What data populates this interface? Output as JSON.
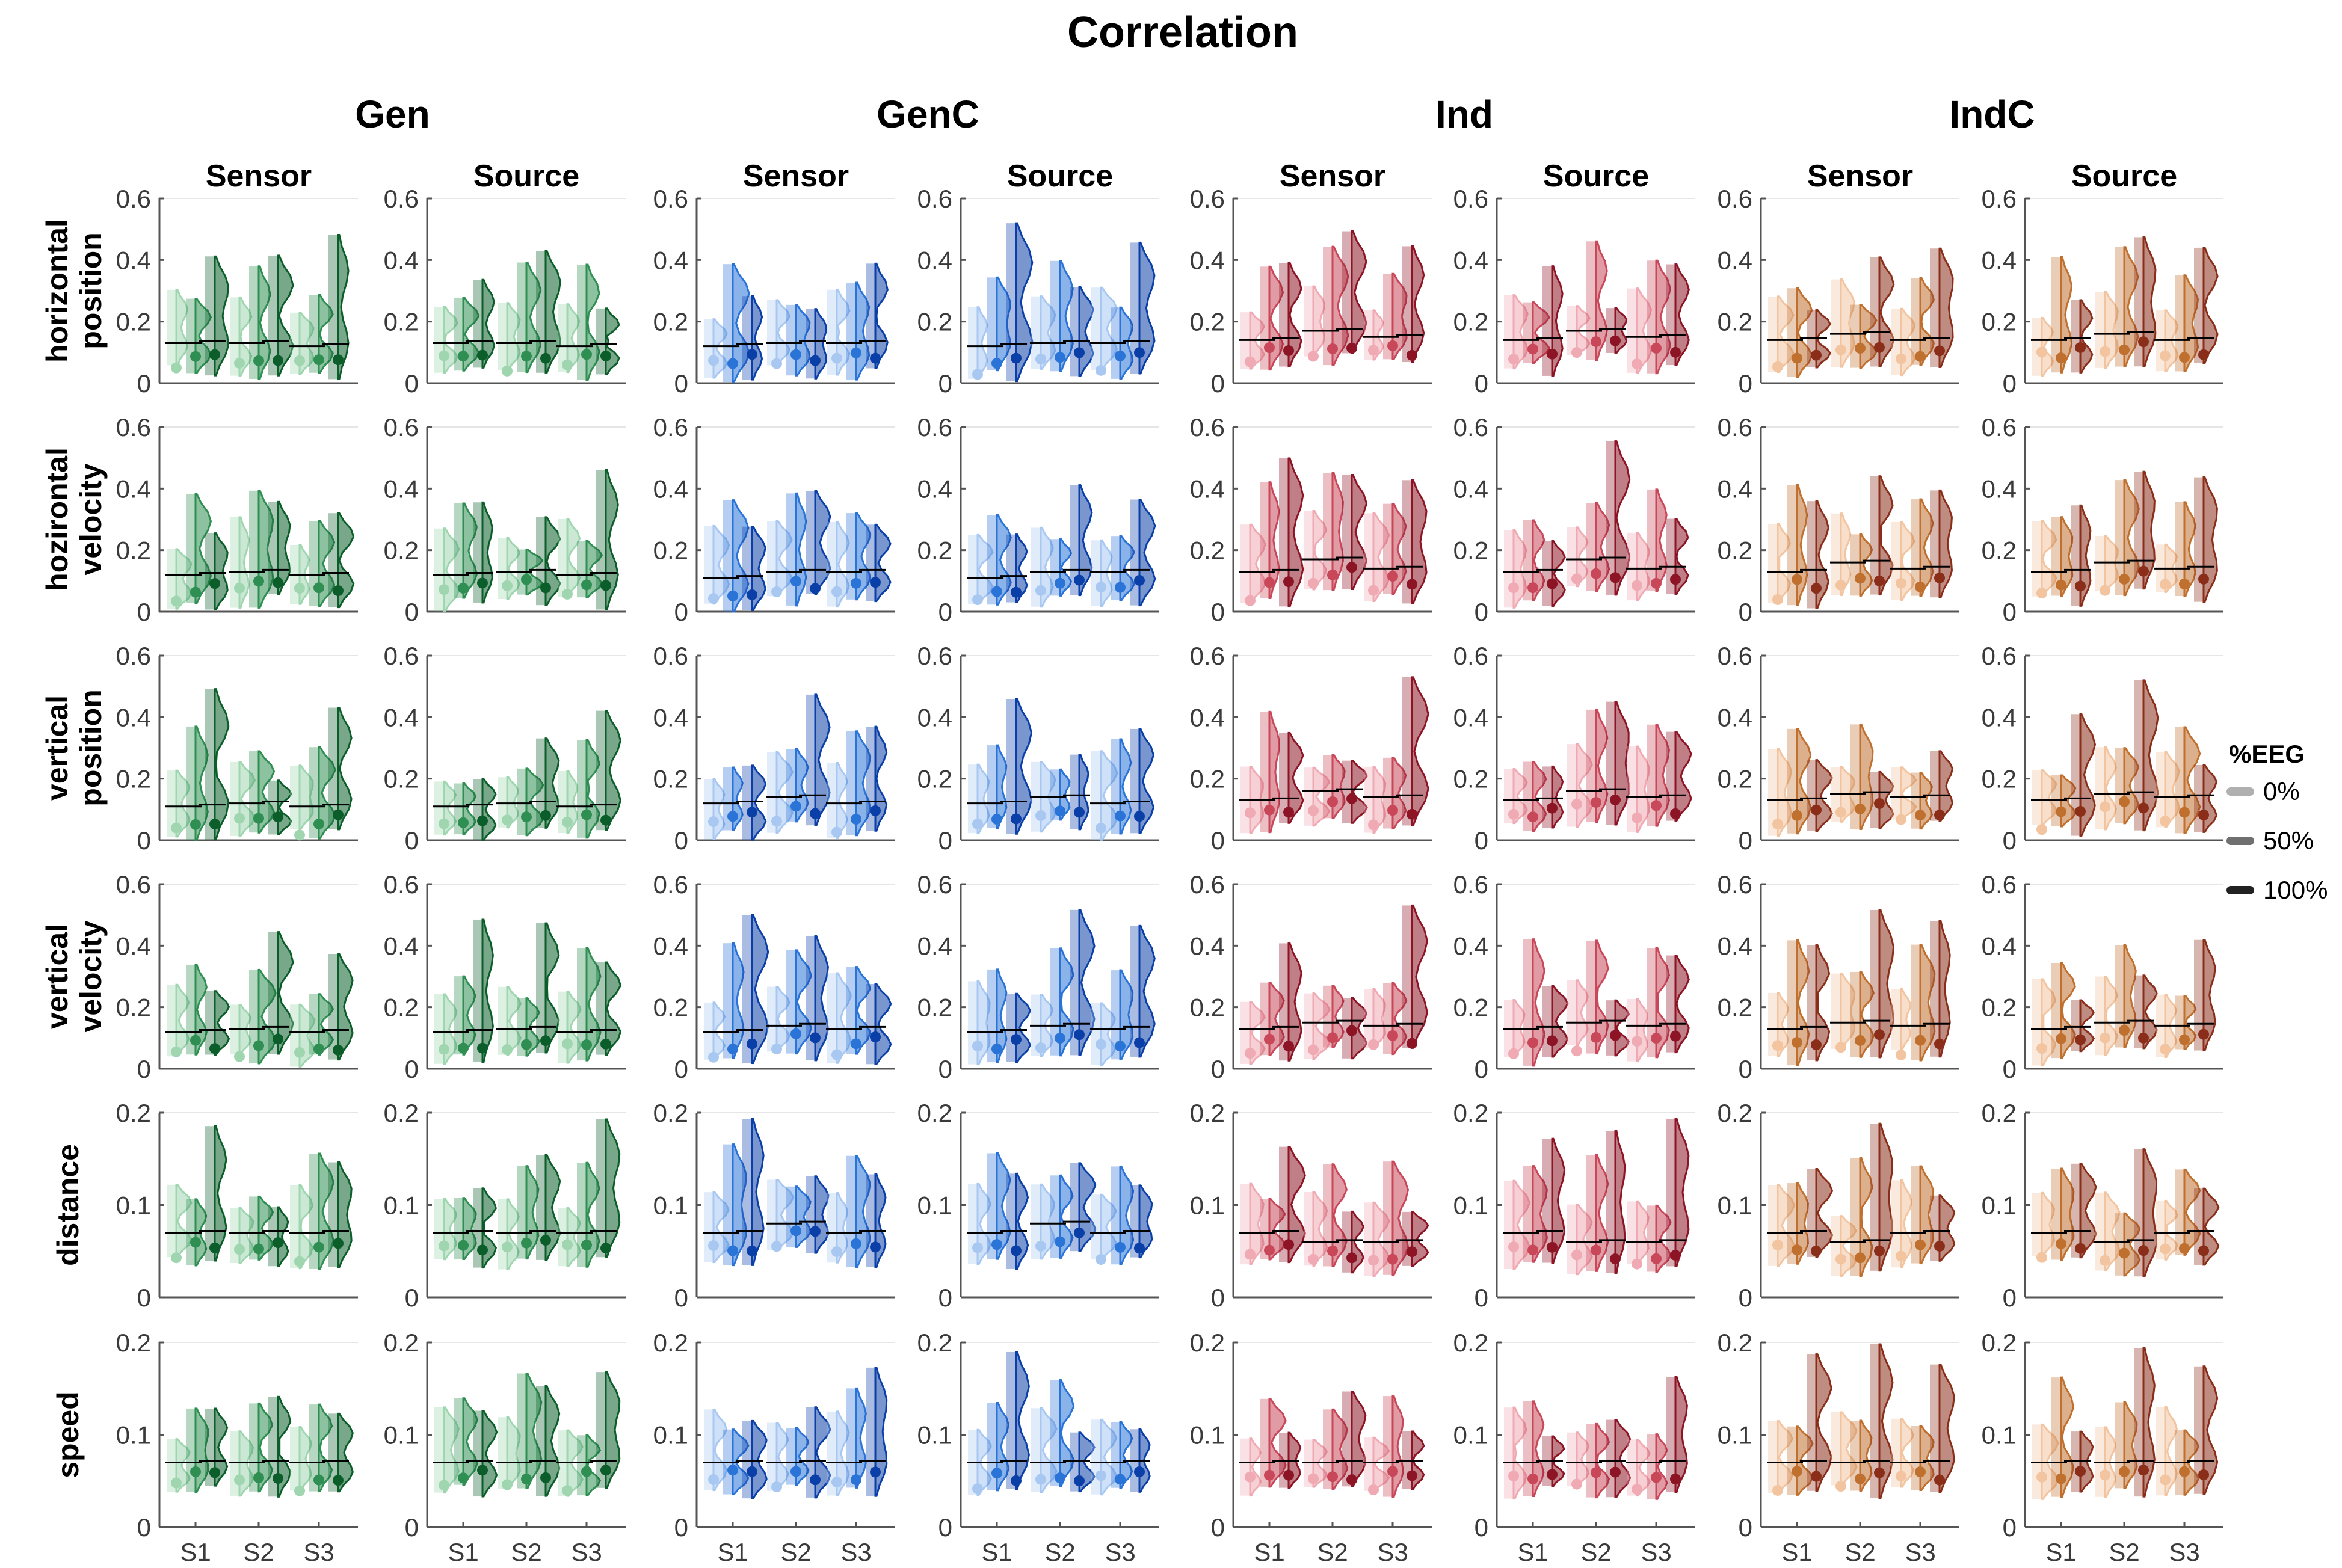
{
  "chart_data": {
    "type": "violin",
    "title": "Correlation",
    "groups": [
      {
        "name": "Gen",
        "color_dark": "#0b5e2a",
        "color_mid": "#2f8f52",
        "color_light": "#9fd6b0"
      },
      {
        "name": "GenC",
        "color_dark": "#0b3fa8",
        "color_mid": "#2a74d8",
        "color_light": "#a8c8f2"
      },
      {
        "name": "Ind",
        "color_dark": "#8c1424",
        "color_mid": "#c8485a",
        "color_light": "#f0aab4"
      },
      {
        "name": "IndC",
        "color_dark": "#8a2e1a",
        "color_mid": "#c0702e",
        "color_light": "#f2c4a0"
      }
    ],
    "spaces": [
      "Sensor",
      "Source"
    ],
    "subjects": [
      "S1",
      "S2",
      "S3"
    ],
    "rows": [
      {
        "label": [
          "horizontal",
          "position"
        ],
        "ylim": [
          0,
          0.6
        ],
        "yticks": [
          "0",
          "0.2",
          "0.4",
          "0.6"
        ],
        "medians": {
          "Gen": [
            0.13,
            0.13,
            0.12
          ],
          "GenC": [
            0.12,
            0.13,
            0.13
          ],
          "Ind": [
            0.14,
            0.17,
            0.15
          ],
          "IndC": [
            0.14,
            0.16,
            0.14
          ]
        }
      },
      {
        "label": [
          "hozirontal",
          "velocity"
        ],
        "ylim": [
          0,
          0.6
        ],
        "yticks": [
          "0",
          "0.2",
          "0.4",
          "0.6"
        ],
        "medians": {
          "Gen": [
            0.12,
            0.13,
            0.12
          ],
          "GenC": [
            0.11,
            0.13,
            0.13
          ],
          "Ind": [
            0.13,
            0.17,
            0.14
          ],
          "IndC": [
            0.13,
            0.16,
            0.14
          ]
        }
      },
      {
        "label": [
          "vertical",
          "position"
        ],
        "ylim": [
          0,
          0.6
        ],
        "yticks": [
          "0",
          "0.2",
          "0.4",
          "0.6"
        ],
        "medians": {
          "Gen": [
            0.11,
            0.12,
            0.11
          ],
          "GenC": [
            0.12,
            0.14,
            0.12
          ],
          "Ind": [
            0.13,
            0.16,
            0.14
          ],
          "IndC": [
            0.13,
            0.15,
            0.14
          ]
        }
      },
      {
        "label": [
          "vertical",
          "velocity"
        ],
        "ylim": [
          0,
          0.6
        ],
        "yticks": [
          "0",
          "0.2",
          "0.4",
          "0.6"
        ],
        "medians": {
          "Gen": [
            0.12,
            0.13,
            0.12
          ],
          "GenC": [
            0.12,
            0.14,
            0.13
          ],
          "Ind": [
            0.13,
            0.15,
            0.14
          ],
          "IndC": [
            0.13,
            0.15,
            0.14
          ]
        }
      },
      {
        "label": [
          "distance"
        ],
        "ylim": [
          0,
          0.2
        ],
        "yticks": [
          "0",
          "0.1",
          "0.2"
        ],
        "medians": {
          "Gen": [
            0.07,
            0.07,
            0.07
          ],
          "GenC": [
            0.07,
            0.08,
            0.07
          ],
          "Ind": [
            0.07,
            0.06,
            0.06
          ],
          "IndC": [
            0.07,
            0.06,
            0.07
          ]
        }
      },
      {
        "label": [
          "speed"
        ],
        "ylim": [
          0,
          0.2
        ],
        "yticks": [
          "0",
          "0.1",
          "0.2"
        ],
        "medians": {
          "Gen": [
            0.07,
            0.07,
            0.07
          ],
          "GenC": [
            0.07,
            0.07,
            0.07
          ],
          "Ind": [
            0.07,
            0.07,
            0.07
          ],
          "IndC": [
            0.07,
            0.07,
            0.07
          ]
        }
      }
    ],
    "legend": {
      "title": "%EEG",
      "entries": [
        "0%",
        "50%",
        "100%"
      ],
      "colors": [
        "#b0b0b0",
        "#707070",
        "#222222"
      ]
    }
  }
}
